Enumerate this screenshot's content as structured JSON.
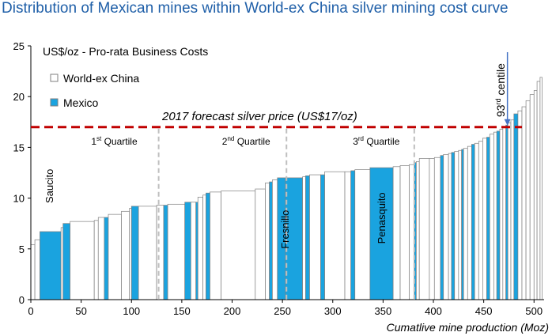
{
  "title": "Distribution of Mexican mines within World-ex China silver mining cost curve",
  "colors": {
    "title": "#1f5fa8",
    "mexico": "#1aa3df",
    "world": "#ffffff",
    "edge": "#7f7f7f",
    "price_line": "#c00000",
    "arrow": "#4472c4",
    "quartile_line": "#bfbfbf"
  },
  "chart_data": {
    "type": "bar",
    "subtype": "cost-curve (variable-width bars)",
    "ylabel": "US$/oz - Pro-rata Business Costs",
    "xlabel": "Cumatlive mine production (Moz)",
    "xlim": [
      0,
      510
    ],
    "ylim": [
      0,
      25
    ],
    "x_ticks": [
      0,
      50,
      100,
      150,
      200,
      250,
      300,
      350,
      400,
      450,
      500
    ],
    "y_ticks": [
      0,
      5,
      10,
      15,
      20,
      25
    ],
    "legend": [
      {
        "name": "World-ex China",
        "color": "#ffffff"
      },
      {
        "name": "Mexico",
        "color": "#1aa3df"
      }
    ],
    "price_line": {
      "value": 17,
      "label": "2017 forecast silver price (US$17/oz)"
    },
    "quartiles": [
      {
        "x": 127,
        "label_prefix": "1",
        "label_sup": "st",
        "label_suffix": " Quartile",
        "label_x": 60
      },
      {
        "x": 254,
        "label_prefix": "2",
        "label_sup": "nd",
        "label_suffix": " Quartile",
        "label_x": 190
      },
      {
        "x": 381,
        "label_prefix": "3",
        "label_sup": "rd",
        "label_suffix": " Quartile",
        "label_x": 320
      }
    ],
    "centile_annotation": {
      "prefix": "93",
      "sup": "rd",
      "suffix": " centile",
      "x": 472,
      "y": 17
    },
    "mine_labels": [
      {
        "name": "Saucito",
        "x": 22,
        "y": 9.5
      },
      {
        "name": "Fresnillo",
        "x": 256,
        "y": 5
      },
      {
        "name": "Penasquito",
        "x": 352,
        "y": 5.5
      }
    ],
    "bars": [
      {
        "x0": 0,
        "x1": 4,
        "y": 5.4,
        "mexico": false
      },
      {
        "x0": 4,
        "x1": 9,
        "y": 5.9,
        "mexico": false
      },
      {
        "x0": 9,
        "x1": 30,
        "y": 6.7,
        "mexico": true
      },
      {
        "x0": 30,
        "x1": 32,
        "y": 7.1,
        "mexico": false
      },
      {
        "x0": 32,
        "x1": 39,
        "y": 7.5,
        "mexico": true
      },
      {
        "x0": 39,
        "x1": 63,
        "y": 7.7,
        "mexico": false
      },
      {
        "x0": 63,
        "x1": 67,
        "y": 7.8,
        "mexico": false
      },
      {
        "x0": 67,
        "x1": 73,
        "y": 8.1,
        "mexico": false
      },
      {
        "x0": 73,
        "x1": 77,
        "y": 8.1,
        "mexico": true
      },
      {
        "x0": 77,
        "x1": 90,
        "y": 8.4,
        "mexico": false
      },
      {
        "x0": 90,
        "x1": 98,
        "y": 8.7,
        "mexico": false
      },
      {
        "x0": 98,
        "x1": 100,
        "y": 9.0,
        "mexico": false
      },
      {
        "x0": 100,
        "x1": 107,
        "y": 9.2,
        "mexico": true
      },
      {
        "x0": 107,
        "x1": 125,
        "y": 9.2,
        "mexico": false
      },
      {
        "x0": 125,
        "x1": 132,
        "y": 9.3,
        "mexico": false
      },
      {
        "x0": 132,
        "x1": 136,
        "y": 9.3,
        "mexico": true
      },
      {
        "x0": 136,
        "x1": 153,
        "y": 9.4,
        "mexico": false
      },
      {
        "x0": 153,
        "x1": 159,
        "y": 9.6,
        "mexico": true
      },
      {
        "x0": 159,
        "x1": 164,
        "y": 9.6,
        "mexico": false
      },
      {
        "x0": 164,
        "x1": 166,
        "y": 9.6,
        "mexico": true
      },
      {
        "x0": 166,
        "x1": 171,
        "y": 10.1,
        "mexico": false
      },
      {
        "x0": 171,
        "x1": 174,
        "y": 10.3,
        "mexico": false
      },
      {
        "x0": 174,
        "x1": 178,
        "y": 10.5,
        "mexico": true
      },
      {
        "x0": 178,
        "x1": 189,
        "y": 10.6,
        "mexico": false
      },
      {
        "x0": 189,
        "x1": 223,
        "y": 10.7,
        "mexico": false
      },
      {
        "x0": 223,
        "x1": 233,
        "y": 10.9,
        "mexico": false
      },
      {
        "x0": 233,
        "x1": 237,
        "y": 11.5,
        "mexico": false
      },
      {
        "x0": 237,
        "x1": 240,
        "y": 11.6,
        "mexico": true
      },
      {
        "x0": 240,
        "x1": 245,
        "y": 11.8,
        "mexico": false
      },
      {
        "x0": 245,
        "x1": 253,
        "y": 12.0,
        "mexico": true
      },
      {
        "x0": 253,
        "x1": 270,
        "y": 12.0,
        "mexico": true
      },
      {
        "x0": 270,
        "x1": 273,
        "y": 12.1,
        "mexico": false
      },
      {
        "x0": 273,
        "x1": 277,
        "y": 12.2,
        "mexico": true
      },
      {
        "x0": 277,
        "x1": 288,
        "y": 12.3,
        "mexico": false
      },
      {
        "x0": 288,
        "x1": 292,
        "y": 12.3,
        "mexico": true
      },
      {
        "x0": 292,
        "x1": 312,
        "y": 12.6,
        "mexico": false
      },
      {
        "x0": 312,
        "x1": 318,
        "y": 12.6,
        "mexico": false
      },
      {
        "x0": 318,
        "x1": 322,
        "y": 12.7,
        "mexico": true
      },
      {
        "x0": 322,
        "x1": 337,
        "y": 12.8,
        "mexico": false
      },
      {
        "x0": 337,
        "x1": 360,
        "y": 13.0,
        "mexico": true
      },
      {
        "x0": 360,
        "x1": 367,
        "y": 13.1,
        "mexico": false
      },
      {
        "x0": 367,
        "x1": 376,
        "y": 13.2,
        "mexico": false
      },
      {
        "x0": 376,
        "x1": 381,
        "y": 13.3,
        "mexico": false
      },
      {
        "x0": 381,
        "x1": 383,
        "y": 13.5,
        "mexico": true
      },
      {
        "x0": 383,
        "x1": 386,
        "y": 13.6,
        "mexico": false
      },
      {
        "x0": 386,
        "x1": 396,
        "y": 13.9,
        "mexico": false
      },
      {
        "x0": 396,
        "x1": 401,
        "y": 13.9,
        "mexico": false
      },
      {
        "x0": 401,
        "x1": 407,
        "y": 14.0,
        "mexico": false
      },
      {
        "x0": 407,
        "x1": 410,
        "y": 14.2,
        "mexico": true
      },
      {
        "x0": 410,
        "x1": 415,
        "y": 14.3,
        "mexico": false
      },
      {
        "x0": 415,
        "x1": 418,
        "y": 14.4,
        "mexico": false
      },
      {
        "x0": 418,
        "x1": 421,
        "y": 14.5,
        "mexico": true
      },
      {
        "x0": 421,
        "x1": 425,
        "y": 14.6,
        "mexico": false
      },
      {
        "x0": 425,
        "x1": 428,
        "y": 14.7,
        "mexico": false
      },
      {
        "x0": 428,
        "x1": 430,
        "y": 14.8,
        "mexico": true
      },
      {
        "x0": 430,
        "x1": 434,
        "y": 14.9,
        "mexico": false
      },
      {
        "x0": 434,
        "x1": 438,
        "y": 15.1,
        "mexico": false
      },
      {
        "x0": 438,
        "x1": 441,
        "y": 15.3,
        "mexico": true
      },
      {
        "x0": 441,
        "x1": 445,
        "y": 15.4,
        "mexico": false
      },
      {
        "x0": 445,
        "x1": 449,
        "y": 15.6,
        "mexico": false
      },
      {
        "x0": 449,
        "x1": 453,
        "y": 15.9,
        "mexico": false
      },
      {
        "x0": 453,
        "x1": 456,
        "y": 16.0,
        "mexico": true
      },
      {
        "x0": 456,
        "x1": 460,
        "y": 16.3,
        "mexico": false
      },
      {
        "x0": 460,
        "x1": 463,
        "y": 16.5,
        "mexico": false
      },
      {
        "x0": 463,
        "x1": 466,
        "y": 16.6,
        "mexico": true
      },
      {
        "x0": 466,
        "x1": 469,
        "y": 16.8,
        "mexico": false
      },
      {
        "x0": 469,
        "x1": 472,
        "y": 17.0,
        "mexico": false
      },
      {
        "x0": 472,
        "x1": 474,
        "y": 17.2,
        "mexico": true
      },
      {
        "x0": 474,
        "x1": 477,
        "y": 17.4,
        "mexico": false
      },
      {
        "x0": 477,
        "x1": 480,
        "y": 17.7,
        "mexico": false
      },
      {
        "x0": 480,
        "x1": 484,
        "y": 18.3,
        "mexico": true
      },
      {
        "x0": 484,
        "x1": 488,
        "y": 18.6,
        "mexico": false
      },
      {
        "x0": 488,
        "x1": 492,
        "y": 19.0,
        "mexico": false
      },
      {
        "x0": 492,
        "x1": 496,
        "y": 19.6,
        "mexico": false
      },
      {
        "x0": 496,
        "x1": 500,
        "y": 20.2,
        "mexico": false
      },
      {
        "x0": 500,
        "x1": 503,
        "y": 20.6,
        "mexico": false
      },
      {
        "x0": 503,
        "x1": 506,
        "y": 21.5,
        "mexico": false
      },
      {
        "x0": 506,
        "x1": 508,
        "y": 21.9,
        "mexico": false
      }
    ]
  }
}
